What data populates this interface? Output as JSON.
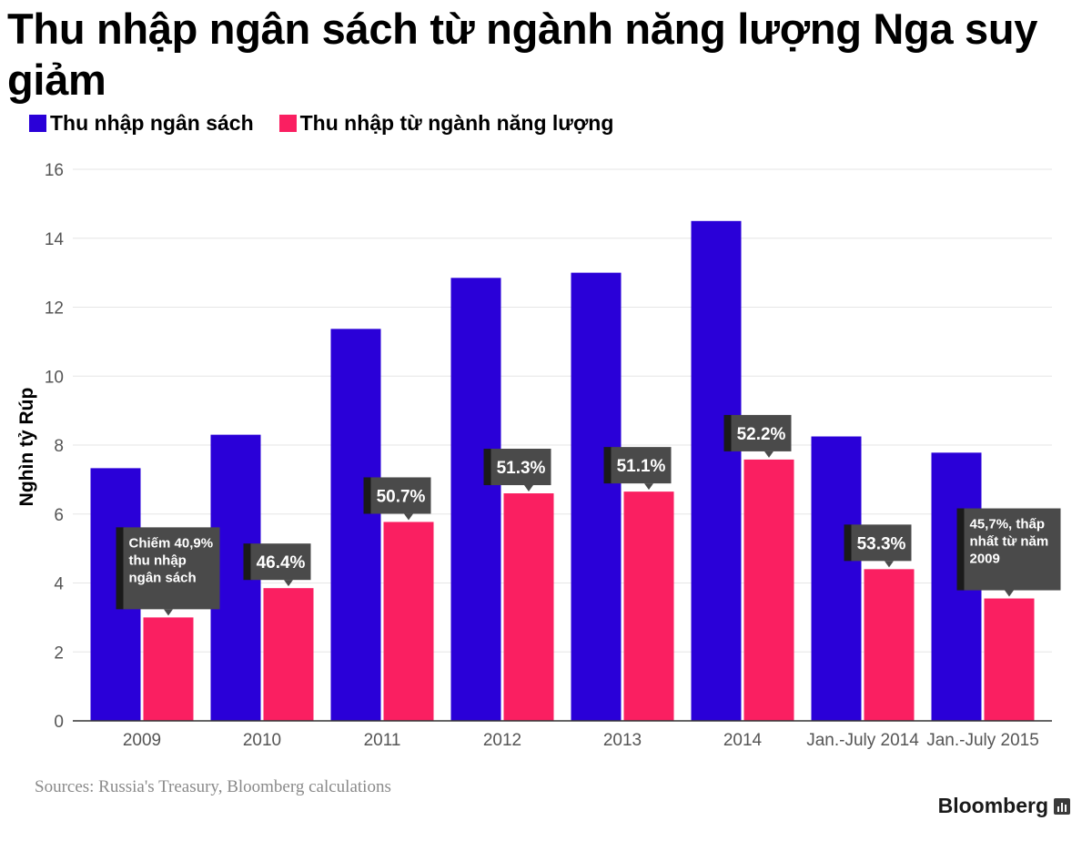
{
  "title": "Thu nhập ngân sách từ ngành năng lượng Nga suy giảm",
  "source": "Sources: Russia's Treasury, Bloomberg calculations",
  "brand": "Bloomberg",
  "colors": {
    "budget": "#2a00d8",
    "energy": "#fa1f61",
    "annotation_bg": "#4a4a4a",
    "annotation_edge": "#1a1a1a",
    "grid": "#e6e6e6",
    "axis_text": "#555555"
  },
  "chart_data": {
    "type": "bar",
    "ylabel": "Nghìn tỷ Rúp",
    "ylim": [
      0,
      16
    ],
    "yticks": [
      0,
      2,
      4,
      6,
      8,
      10,
      12,
      14,
      16
    ],
    "grid": true,
    "legend_position": "top-left",
    "categories": [
      "2009",
      "2010",
      "2011",
      "2012",
      "2013",
      "2014",
      "Jan.-July 2014",
      "Jan.-July 2015"
    ],
    "series": [
      {
        "name": "Thu nhập ngân sách",
        "values": [
          7.33,
          8.3,
          11.37,
          12.85,
          13.0,
          14.5,
          8.25,
          7.78
        ]
      },
      {
        "name": "Thu nhập từ ngành năng lượng",
        "values": [
          3.0,
          3.85,
          5.77,
          6.6,
          6.65,
          7.58,
          4.4,
          3.55
        ]
      }
    ],
    "annotations": [
      {
        "category": "2009",
        "lines": [
          "Chiếm 40,9%",
          "thu nhập",
          "ngân sách"
        ]
      },
      {
        "category": "2010",
        "lines": [
          "46.4%"
        ]
      },
      {
        "category": "2011",
        "lines": [
          "50.7%"
        ]
      },
      {
        "category": "2012",
        "lines": [
          "51.3%"
        ]
      },
      {
        "category": "2013",
        "lines": [
          "51.1%"
        ]
      },
      {
        "category": "2014",
        "lines": [
          "52.2%"
        ]
      },
      {
        "category": "Jan.-July 2014",
        "lines": [
          "53.3%"
        ]
      },
      {
        "category": "Jan.-July 2015",
        "lines": [
          "45,7%, thấp",
          "nhất từ năm",
          "2009"
        ]
      }
    ]
  }
}
